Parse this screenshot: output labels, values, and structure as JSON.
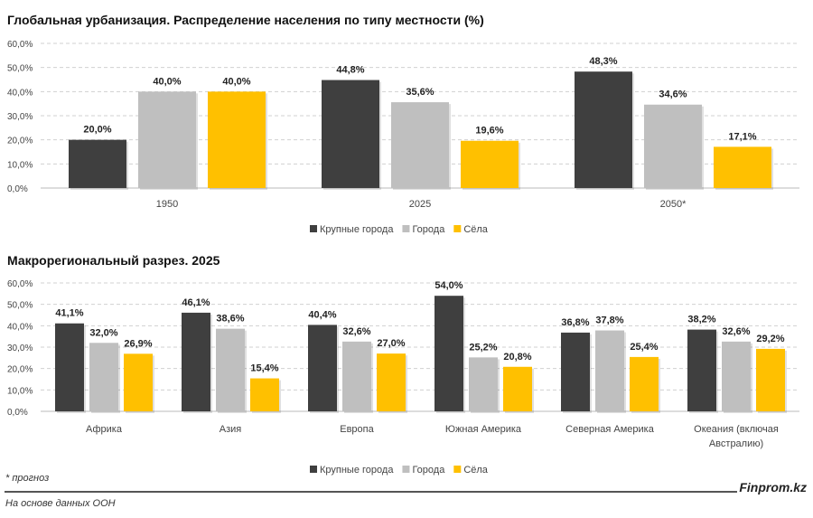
{
  "colors": {
    "big_cities": "#3f3f3f",
    "cities": "#bfbfbf",
    "villages": "#ffc000"
  },
  "chart_data": [
    {
      "type": "bar",
      "title": "Глобальная урбанизация. Распределение населения по типу местности (%)",
      "categories": [
        "1950",
        "2025",
        "2050*"
      ],
      "series": [
        {
          "name": "Крупные города",
          "values": [
            20.0,
            44.8,
            48.3
          ]
        },
        {
          "name": "Города",
          "values": [
            40.0,
            35.6,
            34.6
          ]
        },
        {
          "name": "Сёла",
          "values": [
            40.0,
            19.6,
            17.1
          ]
        }
      ],
      "yticks": [
        "0,0%",
        "10,0%",
        "20,0%",
        "30,0%",
        "40,0%",
        "50,0%",
        "60,0%"
      ],
      "ylim": [
        0,
        60
      ],
      "grid": true,
      "legend": "bottom"
    },
    {
      "type": "bar",
      "title": "Макрорегиональный разрез. 2025",
      "categories": [
        [
          "Африка"
        ],
        [
          "Азия"
        ],
        [
          "Европа"
        ],
        [
          "Южная Америка"
        ],
        [
          "Северная Америка"
        ],
        [
          "Океания (включая",
          "Австралию)"
        ]
      ],
      "series": [
        {
          "name": "Крупные города",
          "values": [
            41.1,
            46.1,
            40.4,
            54.0,
            36.8,
            38.2
          ]
        },
        {
          "name": "Города",
          "values": [
            32.0,
            38.6,
            32.6,
            25.2,
            37.8,
            32.6
          ]
        },
        {
          "name": "Сёла",
          "values": [
            26.9,
            15.4,
            27.0,
            20.8,
            25.4,
            29.2
          ]
        }
      ],
      "yticks": [
        "0,0%",
        "10,0%",
        "20,0%",
        "30,0%",
        "40,0%",
        "50,0%",
        "60,0%"
      ],
      "ylim": [
        0,
        60
      ],
      "grid": true,
      "legend": "bottom"
    }
  ],
  "footer": {
    "note": "* прогноз",
    "source": "На основе данных ООН",
    "brand": "Finprom.kz"
  }
}
